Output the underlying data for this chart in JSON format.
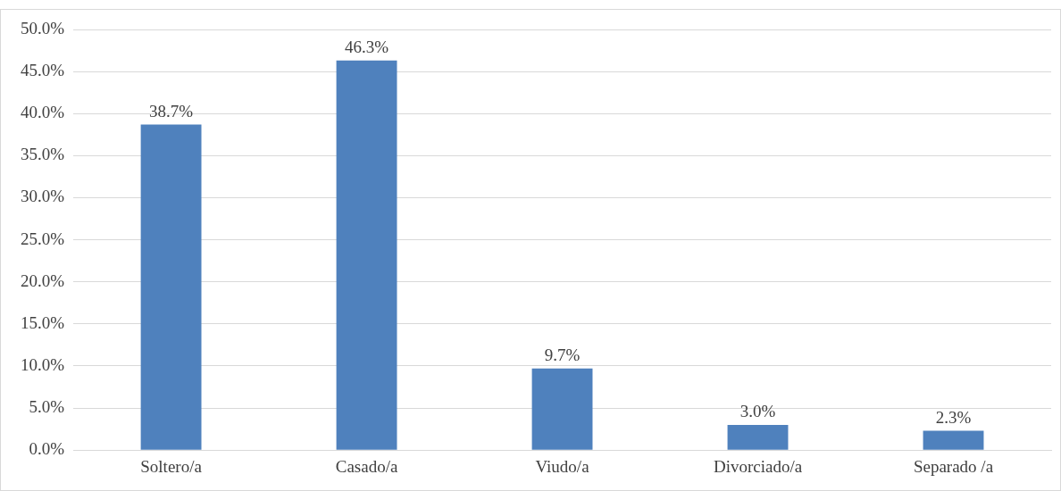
{
  "chart_data": {
    "type": "bar",
    "categories": [
      "Soltero/a",
      "Casado/a",
      "Viudo/a",
      "Divorciado/a",
      "Separado /a"
    ],
    "values": [
      38.7,
      46.3,
      9.7,
      3.0,
      2.3
    ],
    "color": "#4f81bd",
    "value_labels": [
      "38.7%",
      "46.3%",
      "9.7%",
      "3.0%",
      "2.3%"
    ],
    "ylim": [
      0,
      50
    ],
    "yticks": [
      {
        "value": 0,
        "label": "0.0%"
      },
      {
        "value": 5,
        "label": "5.0%"
      },
      {
        "value": 10,
        "label": "10.0%"
      },
      {
        "value": 15,
        "label": "15.0%"
      },
      {
        "value": 20,
        "label": "20.0%"
      },
      {
        "value": 25,
        "label": "25.0%"
      },
      {
        "value": 30,
        "label": "30.0%"
      },
      {
        "value": 35,
        "label": "35.0%"
      },
      {
        "value": 40,
        "label": "40.0%"
      },
      {
        "value": 45,
        "label": "45.0%"
      },
      {
        "value": 50,
        "label": "50.0%"
      }
    ],
    "grid": "y"
  }
}
